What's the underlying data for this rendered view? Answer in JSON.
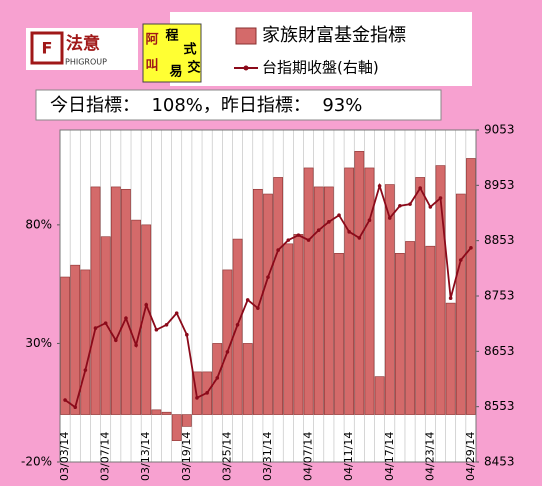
{
  "chart_data": {
    "type": "combo",
    "logo": {
      "brand": "法意",
      "brand_sub": "PHIGROUP",
      "chars": [
        "阿",
        "叫",
        "程",
        "式",
        "易",
        "交"
      ]
    },
    "headline": "今日指標：  108%，昨日指標：  93%",
    "categories": [
      "03/03/14",
      null,
      null,
      null,
      "03/07/14",
      null,
      null,
      null,
      "03/13/14",
      null,
      null,
      null,
      "03/19/14",
      null,
      null,
      null,
      "03/25/14",
      null,
      null,
      null,
      "03/31/14",
      null,
      null,
      null,
      "04/07/14",
      null,
      null,
      null,
      "04/11/14",
      null,
      null,
      null,
      "04/17/14",
      null,
      null,
      null,
      "04/23/14",
      null,
      null,
      null,
      "04/29/14"
    ],
    "series": [
      {
        "name": "家族財富基金指標",
        "type": "bar",
        "color": "#d46a6a",
        "values": [
          58,
          63,
          61,
          96,
          75,
          96,
          95,
          82,
          80,
          2,
          1,
          -11,
          -5,
          18,
          18,
          30,
          61,
          74,
          30,
          95,
          93,
          100,
          72,
          76,
          104,
          96,
          96,
          68,
          104,
          111,
          104,
          16,
          97,
          68,
          73,
          100,
          71,
          105,
          47,
          93,
          108
        ]
      },
      {
        "name": "台指期收盤(右軸)",
        "type": "line",
        "axis": "y2",
        "color": "#8b0a1a",
        "values": [
          8565,
          8552,
          8619,
          8695,
          8704,
          8673,
          8713,
          8664,
          8737,
          8692,
          8701,
          8722,
          8683,
          8569,
          8578,
          8605,
          8652,
          8701,
          8746,
          8731,
          8787,
          8836,
          8854,
          8863,
          8854,
          8872,
          8887,
          8899,
          8869,
          8858,
          8890,
          8952,
          8894,
          8916,
          8919,
          8948,
          8914,
          8930,
          8749,
          8818,
          8840
        ]
      }
    ],
    "ylim": [
      -20,
      120
    ],
    "yticks": [
      {
        "value": -20,
        "label": "-20%"
      },
      {
        "value": 30,
        "label": "30%"
      },
      {
        "value": 80,
        "label": "80%"
      }
    ],
    "y2lim": [
      8453,
      9053
    ],
    "y2ticks": [
      8453,
      8553,
      8653,
      8753,
      8853,
      8953,
      9053
    ],
    "xgrid": true
  }
}
